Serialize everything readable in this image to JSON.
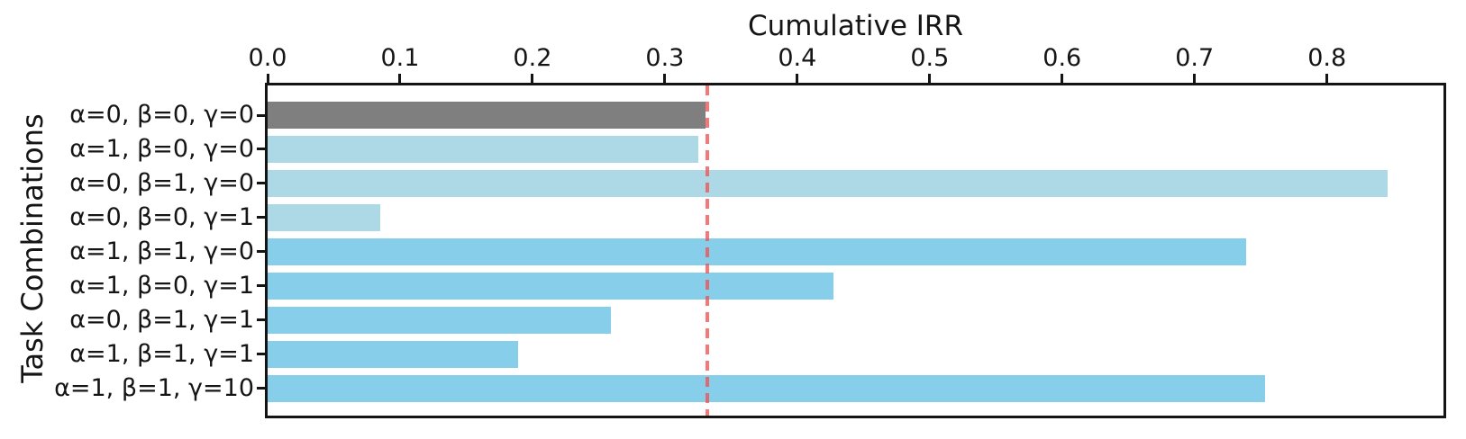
{
  "chart_data": {
    "type": "bar",
    "orientation": "horizontal",
    "title": "Cumulative IRR",
    "ylabel": "Task Combinations",
    "categories": [
      "α=0, β=0, γ=0",
      "α=1, β=0, γ=0",
      "α=0, β=1, γ=0",
      "α=0, β=0, γ=1",
      "α=1, β=1, γ=0",
      "α=1, β=0, γ=1",
      "α=0, β=1, γ=1",
      "α=1, β=1, γ=1",
      "α=1, β=1, γ=10"
    ],
    "values": [
      0.331,
      0.325,
      0.846,
      0.085,
      0.739,
      0.427,
      0.259,
      0.189,
      0.753
    ],
    "bar_colors": [
      "#7f7f7f",
      "#add8e6",
      "#add8e6",
      "#add8e6",
      "#87ceeb",
      "#87ceeb",
      "#87ceeb",
      "#87ceeb",
      "#87ceeb"
    ],
    "x_tick_labels": [
      "0.0",
      "0.1",
      "0.2",
      "0.3",
      "0.4",
      "0.5",
      "0.6",
      "0.7",
      "0.8"
    ],
    "x_tick_values": [
      0.0,
      0.1,
      0.2,
      0.3,
      0.4,
      0.5,
      0.6,
      0.7,
      0.8
    ],
    "xlim": [
      0,
      0.888
    ],
    "reference_line": {
      "value": 0.332,
      "style": "dashed",
      "color": "#f25252"
    },
    "grid": false,
    "legend": false,
    "axis_position": "top",
    "spine_color": "#141414"
  }
}
